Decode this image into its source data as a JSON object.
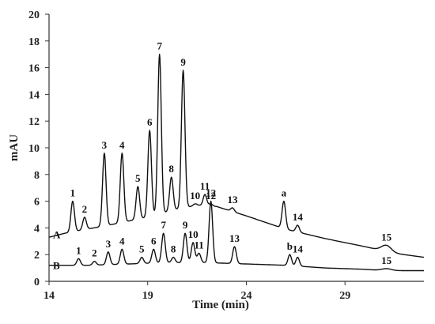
{
  "chart_data": {
    "type": "line",
    "xlabel": "Time (min)",
    "ylabel": "mAU",
    "xlim": [
      14,
      33
    ],
    "ylim": [
      0,
      20
    ],
    "x_ticks": [
      14,
      19,
      24,
      29
    ],
    "y_ticks": [
      0,
      2,
      4,
      6,
      8,
      10,
      12,
      14,
      16,
      18,
      20
    ],
    "grid": false,
    "series": [
      {
        "name": "A",
        "baseline": [
          [
            14,
            3.3
          ],
          [
            14.8,
            3.6
          ],
          [
            17,
            4.2
          ],
          [
            19,
            4.8
          ],
          [
            20.5,
            5.4
          ],
          [
            21.5,
            5.7
          ],
          [
            22.5,
            5.6
          ],
          [
            24,
            4.9
          ],
          [
            26,
            3.9
          ],
          [
            28,
            3.2
          ],
          [
            30,
            2.6
          ],
          [
            31.5,
            2.1
          ],
          [
            33,
            1.8
          ]
        ],
        "peaks": [
          {
            "label": "1",
            "x": 15.2,
            "y": 6.0
          },
          {
            "label": "2",
            "x": 15.8,
            "y": 4.8
          },
          {
            "label": "3",
            "x": 16.8,
            "y": 9.6
          },
          {
            "label": "4",
            "x": 17.7,
            "y": 9.6
          },
          {
            "label": "5",
            "x": 18.5,
            "y": 7.1
          },
          {
            "label": "6",
            "x": 19.1,
            "y": 11.3
          },
          {
            "label": "7",
            "x": 19.6,
            "y": 17.0
          },
          {
            "label": "8",
            "x": 20.2,
            "y": 7.8
          },
          {
            "label": "9",
            "x": 20.8,
            "y": 15.8
          },
          {
            "label": "10",
            "x": 21.4,
            "y": 5.8
          },
          {
            "label": "11",
            "x": 21.9,
            "y": 6.5
          },
          {
            "label": "12",
            "x": 22.2,
            "y": 5.8
          },
          {
            "label": "13",
            "x": 23.3,
            "y": 5.5
          },
          {
            "label": "a",
            "x": 25.9,
            "y": 6.0
          },
          {
            "label": "14",
            "x": 26.6,
            "y": 4.2
          },
          {
            "label": "15",
            "x": 31.1,
            "y": 2.7
          }
        ]
      },
      {
        "name": "B",
        "baseline": [
          [
            14,
            1.2
          ],
          [
            16,
            1.2
          ],
          [
            18,
            1.3
          ],
          [
            20,
            1.4
          ],
          [
            22,
            1.4
          ],
          [
            24,
            1.3
          ],
          [
            26,
            1.2
          ],
          [
            28,
            1.0
          ],
          [
            30,
            0.9
          ],
          [
            31,
            0.8
          ],
          [
            33,
            0.8
          ]
        ],
        "peaks": [
          {
            "label": "1",
            "x": 15.5,
            "y": 1.7
          },
          {
            "label": "2",
            "x": 16.3,
            "y": 1.5
          },
          {
            "label": "3",
            "x": 17.0,
            "y": 2.2
          },
          {
            "label": "4",
            "x": 17.7,
            "y": 2.4
          },
          {
            "label": "5",
            "x": 18.7,
            "y": 1.8
          },
          {
            "label": "6",
            "x": 19.3,
            "y": 2.4
          },
          {
            "label": "7",
            "x": 19.8,
            "y": 3.6
          },
          {
            "label": "8",
            "x": 20.3,
            "y": 1.8
          },
          {
            "label": "9",
            "x": 20.9,
            "y": 3.6
          },
          {
            "label": "10",
            "x": 21.3,
            "y": 2.9
          },
          {
            "label": "11",
            "x": 21.6,
            "y": 2.1
          },
          {
            "label": "12",
            "x": 22.2,
            "y": 6.0
          },
          {
            "label": "13",
            "x": 23.4,
            "y": 2.6
          },
          {
            "label": "b",
            "x": 26.2,
            "y": 2.0
          },
          {
            "label": "14",
            "x": 26.6,
            "y": 1.8
          },
          {
            "label": "15",
            "x": 31.1,
            "y": 0.95
          }
        ]
      }
    ]
  }
}
